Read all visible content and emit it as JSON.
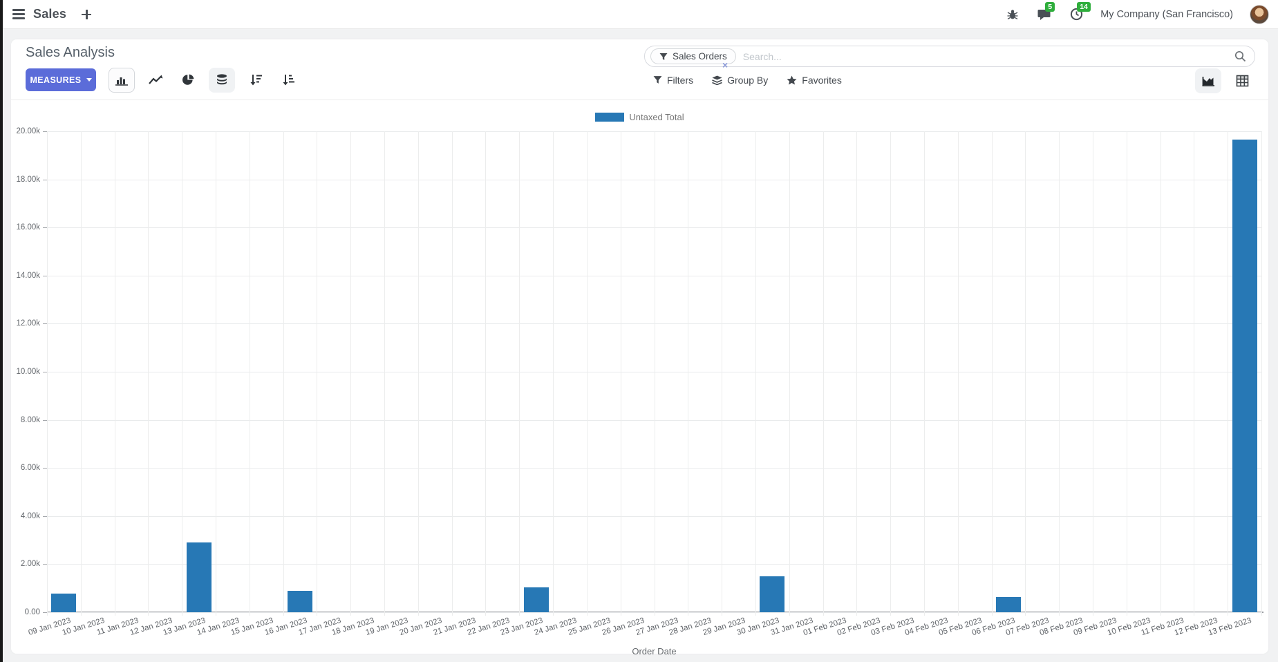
{
  "navbar": {
    "app_name": "Sales",
    "company": "My Company (San Francisco)",
    "message_badge": "5",
    "activity_badge": "14"
  },
  "control_panel": {
    "title": "Sales Analysis",
    "measures_label": "MEASURES",
    "search": {
      "facet_label": "Sales Orders",
      "placeholder": "Search...",
      "remove_glyph": "×"
    },
    "filters_label": "Filters",
    "group_by_label": "Group By",
    "favorites_label": "Favorites"
  },
  "chart_data": {
    "type": "bar",
    "title": "",
    "xlabel": "Order Date",
    "ylabel": "",
    "legend_position": "top",
    "grid": true,
    "ylim": [
      0,
      20000
    ],
    "ytick_step": 2000,
    "ytick_labels": [
      "0.00",
      "2.00k",
      "4.00k",
      "6.00k",
      "8.00k",
      "10.00k",
      "12.00k",
      "14.00k",
      "16.00k",
      "18.00k",
      "20.00k"
    ],
    "categories": [
      "09 Jan 2023",
      "10 Jan 2023",
      "11 Jan 2023",
      "12 Jan 2023",
      "13 Jan 2023",
      "14 Jan 2023",
      "15 Jan 2023",
      "16 Jan 2023",
      "17 Jan 2023",
      "18 Jan 2023",
      "19 Jan 2023",
      "20 Jan 2023",
      "21 Jan 2023",
      "22 Jan 2023",
      "23 Jan 2023",
      "24 Jan 2023",
      "25 Jan 2023",
      "26 Jan 2023",
      "27 Jan 2023",
      "28 Jan 2023",
      "29 Jan 2023",
      "30 Jan 2023",
      "31 Jan 2023",
      "01 Feb 2023",
      "02 Feb 2023",
      "03 Feb 2023",
      "04 Feb 2023",
      "05 Feb 2023",
      "06 Feb 2023",
      "07 Feb 2023",
      "08 Feb 2023",
      "09 Feb 2023",
      "10 Feb 2023",
      "11 Feb 2023",
      "12 Feb 2023",
      "13 Feb 2023"
    ],
    "series": [
      {
        "name": "Untaxed Total",
        "color": "#2778b5",
        "values": [
          780,
          0,
          0,
          0,
          2900,
          0,
          0,
          890,
          0,
          0,
          0,
          0,
          0,
          0,
          1040,
          0,
          0,
          0,
          0,
          0,
          0,
          1500,
          0,
          0,
          0,
          0,
          0,
          0,
          630,
          0,
          0,
          0,
          0,
          0,
          0,
          19650
        ]
      }
    ]
  },
  "colors": {
    "accent": "#5b6cd9",
    "bar": "#2778b5",
    "badge_green": "#2fae3c"
  }
}
